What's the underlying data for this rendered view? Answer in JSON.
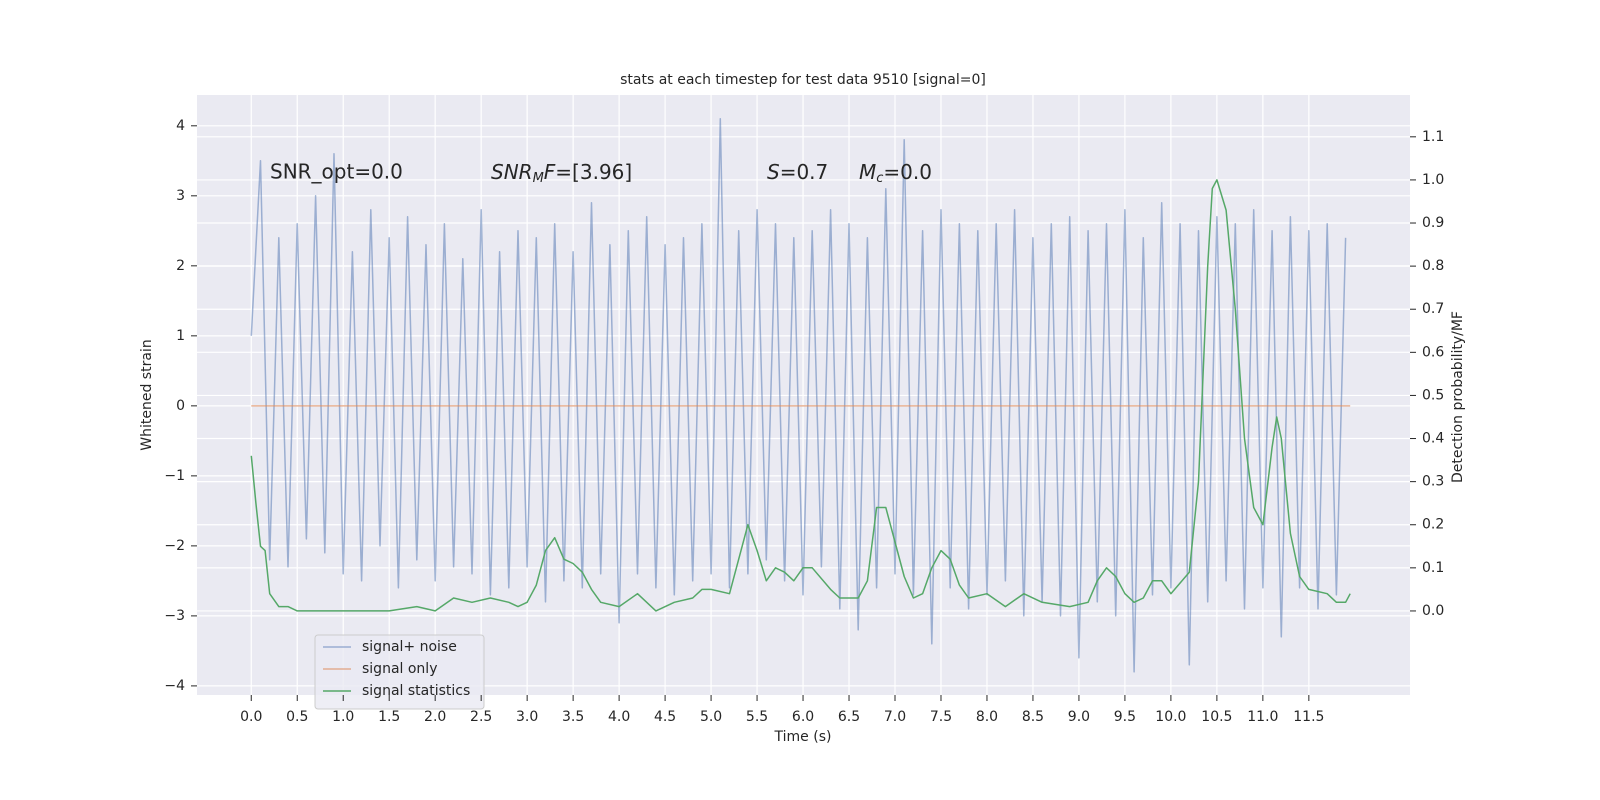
{
  "chart_data": {
    "type": "line",
    "title": "stats at each timestep for test data 9510 [signal=0]",
    "xlabel": "Time (s)",
    "ylabel": "Whitened strain",
    "y2label": "Detection probability/MF",
    "annotations": [
      {
        "text": "SNR_opt=0.0"
      },
      {
        "parts": [
          "SNR",
          "M",
          "F",
          "=[3.96]"
        ]
      },
      {
        "parts": [
          "S",
          "=0.7"
        ]
      },
      {
        "parts": [
          "M",
          "c",
          "=0.0"
        ]
      }
    ],
    "xlim": [
      -0.59,
      12.6
    ],
    "ylim": [
      -4.13,
      4.44
    ],
    "y2lim": [
      -0.195,
      1.197
    ],
    "xticks": [
      {
        "value": 0,
        "label": "0.0"
      },
      0.5,
      {
        "value": 1,
        "label": "1.0"
      },
      1.5,
      {
        "value": 2,
        "label": "2.0"
      },
      2.5,
      {
        "value": 3,
        "label": "3.0"
      },
      3.5,
      {
        "value": 4,
        "label": "4.0"
      },
      4.5,
      {
        "value": 5,
        "label": "5.0"
      },
      5.5,
      {
        "value": 6,
        "label": "6.0"
      },
      6.5,
      {
        "value": 7,
        "label": "7.0"
      },
      7.5,
      {
        "value": 8,
        "label": "8.0"
      },
      8.5,
      {
        "value": 9,
        "label": "9.0"
      },
      9.5,
      {
        "value": 10,
        "label": "10.0"
      },
      10.5,
      {
        "value": 11,
        "label": "11.0"
      },
      11.5
    ],
    "yticks": [
      {
        "value": -4,
        "label": "−4"
      },
      {
        "value": -3,
        "label": "−3"
      },
      {
        "value": -2,
        "label": "−2"
      },
      {
        "value": -1,
        "label": "−1"
      },
      0,
      1,
      2,
      3,
      4
    ],
    "y2ticks": [
      {
        "value": 0,
        "label": "0.0"
      },
      0.1,
      0.2,
      0.3,
      0.4,
      0.5,
      0.6,
      0.7,
      0.8,
      0.9,
      {
        "value": 1,
        "label": "1.0"
      },
      1.1
    ],
    "grid": true,
    "legend": "lower left",
    "series": [
      {
        "name": "signal+ noise",
        "color": "#4c72b0",
        "opacity": 0.5,
        "x": [
          0,
          0.1,
          0.2,
          0.3,
          0.4,
          0.5,
          0.6,
          0.7,
          0.8,
          0.9,
          1,
          1.1,
          1.2,
          1.3,
          1.4,
          1.5,
          1.6,
          1.7,
          1.8,
          1.9,
          2,
          2.1,
          2.2,
          2.3,
          2.4,
          2.5,
          2.6,
          2.7,
          2.8,
          2.9,
          3,
          3.1,
          3.2,
          3.3,
          3.4,
          3.5,
          3.6,
          3.7,
          3.8,
          3.9,
          4,
          4.1,
          4.2,
          4.3,
          4.4,
          4.5,
          4.6,
          4.7,
          4.8,
          4.9,
          5,
          5.1,
          5.2,
          5.3,
          5.4,
          5.5,
          5.6,
          5.7,
          5.8,
          5.9,
          6,
          6.1,
          6.2,
          6.3,
          6.4,
          6.5,
          6.6,
          6.7,
          6.8,
          6.9,
          7,
          7.1,
          7.2,
          7.3,
          7.4,
          7.5,
          7.6,
          7.7,
          7.8,
          7.9,
          8,
          8.1,
          8.2,
          8.3,
          8.4,
          8.5,
          8.6,
          8.7,
          8.8,
          8.9,
          9,
          9.1,
          9.2,
          9.3,
          9.4,
          9.5,
          9.6,
          9.7,
          9.8,
          9.9,
          10,
          10.1,
          10.2,
          10.3,
          10.4,
          10.5,
          10.6,
          10.7,
          10.8,
          10.9,
          11,
          11.1,
          11.2,
          11.3,
          11.4,
          11.5,
          11.6,
          11.7,
          11.8,
          11.9
        ],
        "values": [
          1.0,
          3.5,
          -2.2,
          2.4,
          -2.3,
          2.6,
          -1.9,
          3.0,
          -2.1,
          3.6,
          -2.4,
          2.2,
          -2.5,
          2.8,
          -2.0,
          2.4,
          -2.6,
          2.7,
          -2.2,
          2.3,
          -2.5,
          2.6,
          -2.3,
          2.1,
          -2.4,
          2.8,
          -2.7,
          2.2,
          -2.6,
          2.5,
          -2.3,
          2.4,
          -2.8,
          2.6,
          -2.5,
          2.2,
          -2.6,
          2.9,
          -2.4,
          2.3,
          -3.1,
          2.5,
          -2.4,
          2.7,
          -2.6,
          2.3,
          -2.7,
          2.4,
          -2.5,
          2.6,
          -2.4,
          4.1,
          -2.6,
          2.5,
          -2.4,
          2.8,
          -2.2,
          2.6,
          -2.5,
          2.4,
          -2.7,
          2.5,
          -2.3,
          2.8,
          -2.9,
          2.6,
          -3.2,
          2.4,
          -2.6,
          3.1,
          -2.4,
          3.8,
          -2.7,
          2.5,
          -3.4,
          2.8,
          -2.6,
          2.6,
          -2.9,
          2.5,
          -2.7,
          2.6,
          -2.5,
          2.8,
          -3.0,
          2.4,
          -2.8,
          2.6,
          -3.0,
          2.7,
          -3.6,
          2.5,
          -2.8,
          2.6,
          -3.0,
          2.8,
          -3.8,
          2.4,
          -2.7,
          2.9,
          -2.6,
          2.6,
          -3.7,
          2.5,
          -2.8,
          2.7,
          -2.5,
          2.6,
          -2.9,
          2.8,
          -2.6,
          2.5,
          -3.3,
          2.7,
          -2.6,
          2.5,
          -2.9,
          2.6,
          -2.7,
          2.4
        ]
      },
      {
        "name": "signal only",
        "color": "#dd8452",
        "opacity": 0.6,
        "x": [
          0,
          11.95
        ],
        "values": [
          0,
          0
        ]
      },
      {
        "name": "signal statistics",
        "color": "#55a868",
        "opacity": 1,
        "axis": "y2",
        "x": [
          0,
          0.05,
          0.1,
          0.15,
          0.2,
          0.3,
          0.4,
          0.5,
          0.7,
          1.0,
          1.5,
          1.8,
          2.0,
          2.2,
          2.4,
          2.6,
          2.8,
          2.9,
          3.0,
          3.1,
          3.2,
          3.3,
          3.4,
          3.5,
          3.6,
          3.7,
          3.8,
          4.0,
          4.2,
          4.4,
          4.6,
          4.8,
          4.9,
          5.0,
          5.2,
          5.3,
          5.4,
          5.5,
          5.6,
          5.7,
          5.8,
          5.9,
          6.0,
          6.1,
          6.3,
          6.4,
          6.6,
          6.7,
          6.8,
          6.9,
          7.0,
          7.1,
          7.2,
          7.3,
          7.4,
          7.5,
          7.6,
          7.7,
          7.8,
          8.0,
          8.2,
          8.4,
          8.6,
          8.9,
          9.1,
          9.2,
          9.3,
          9.4,
          9.5,
          9.6,
          9.7,
          9.8,
          9.9,
          10.0,
          10.2,
          10.3,
          10.4,
          10.45,
          10.5,
          10.6,
          10.7,
          10.8,
          10.9,
          11.0,
          11.1,
          11.15,
          11.2,
          11.3,
          11.4,
          11.5,
          11.7,
          11.8,
          11.9,
          11.95
        ],
        "values": [
          0.36,
          0.25,
          0.15,
          0.14,
          0.04,
          0.01,
          0.01,
          0.0,
          0.0,
          0.0,
          0.0,
          0.01,
          0.0,
          0.03,
          0.02,
          0.03,
          0.02,
          0.01,
          0.02,
          0.06,
          0.14,
          0.17,
          0.12,
          0.11,
          0.09,
          0.05,
          0.02,
          0.01,
          0.04,
          0.0,
          0.02,
          0.03,
          0.05,
          0.05,
          0.04,
          0.12,
          0.2,
          0.14,
          0.07,
          0.1,
          0.09,
          0.07,
          0.1,
          0.1,
          0.05,
          0.03,
          0.03,
          0.07,
          0.24,
          0.24,
          0.16,
          0.08,
          0.03,
          0.04,
          0.1,
          0.14,
          0.12,
          0.06,
          0.03,
          0.04,
          0.01,
          0.04,
          0.02,
          0.01,
          0.02,
          0.07,
          0.1,
          0.08,
          0.04,
          0.02,
          0.03,
          0.07,
          0.07,
          0.04,
          0.09,
          0.3,
          0.8,
          0.98,
          1.0,
          0.93,
          0.7,
          0.4,
          0.24,
          0.2,
          0.38,
          0.45,
          0.4,
          0.18,
          0.08,
          0.05,
          0.04,
          0.02,
          0.02,
          0.04
        ]
      }
    ]
  }
}
